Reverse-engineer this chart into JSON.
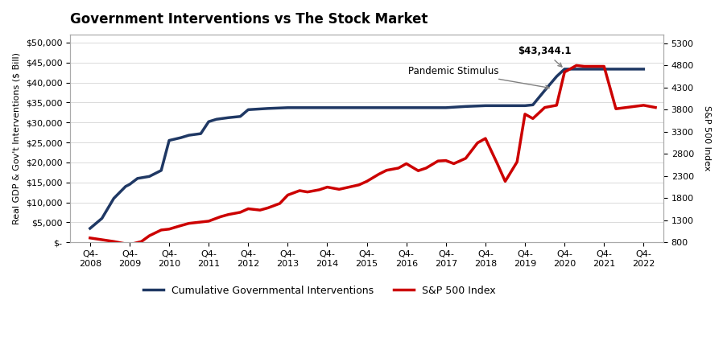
{
  "title": "Government Interventions vs The Stock Market",
  "ylabel_left": "Real GDP & Gov't Interventions ($ Bill)",
  "ylabel_right": "S&P 500 Index",
  "x_labels": [
    "Q4-\n2008",
    "Q4-\n2009",
    "Q4-\n2010",
    "Q4-\n2011",
    "Q4-\n2012",
    "Q4-\n2013",
    "Q4-\n2014",
    "Q4-\n2015",
    "Q4-\n2016",
    "Q4-\n2017",
    "Q4-\n2018",
    "Q4-\n2019",
    "Q4-\n2020",
    "Q4-\n2021",
    "Q4-\n2022"
  ],
  "ylim_left": [
    0,
    52000
  ],
  "ylim_right": [
    800,
    5500
  ],
  "yticks_left": [
    0,
    5000,
    10000,
    15000,
    20000,
    25000,
    30000,
    35000,
    40000,
    45000,
    50000
  ],
  "yticks_right": [
    800,
    1300,
    1800,
    2300,
    2800,
    3300,
    3800,
    4300,
    4800,
    5300
  ],
  "annotation_peak": "$43,344.1",
  "annotation_stimulus": "Pandemic Stimulus",
  "line1_color": "#1f3864",
  "line2_color": "#cc0000",
  "legend1": "Cumulative Governmental Interventions",
  "legend2": "S&P 500 Index",
  "background_color": "#ffffff",
  "gov_x": [
    0,
    0.3,
    0.6,
    0.9,
    1.0,
    1.2,
    1.5,
    1.8,
    2.0,
    2.3,
    2.5,
    2.8,
    3.0,
    3.2,
    3.5,
    3.8,
    4.0,
    4.5,
    5.0,
    5.5,
    6.0,
    6.5,
    7.0,
    7.5,
    8.0,
    8.5,
    9.0,
    9.5,
    10.0,
    10.5,
    11.0,
    11.2,
    11.5,
    11.8,
    12.0,
    12.3,
    13.0,
    13.5,
    14.0
  ],
  "gov_y": [
    3500,
    6000,
    11000,
    14000,
    14500,
    16000,
    16500,
    18000,
    25500,
    26200,
    26800,
    27200,
    30200,
    30800,
    31200,
    31500,
    33200,
    33500,
    33700,
    33700,
    33700,
    33700,
    33700,
    33700,
    33700,
    33700,
    33700,
    34000,
    34200,
    34200,
    34200,
    34400,
    38000,
    41500,
    43344,
    43344,
    43344,
    43344,
    43344
  ],
  "sp_x": [
    0,
    0.3,
    0.6,
    1.0,
    1.3,
    1.5,
    1.8,
    2.0,
    2.3,
    2.5,
    2.8,
    3.0,
    3.3,
    3.5,
    3.8,
    4.0,
    4.3,
    4.5,
    4.8,
    5.0,
    5.3,
    5.5,
    5.8,
    6.0,
    6.3,
    6.5,
    6.8,
    7.0,
    7.3,
    7.5,
    7.8,
    8.0,
    8.3,
    8.5,
    8.8,
    9.0,
    9.2,
    9.5,
    9.8,
    10.0,
    10.3,
    10.5,
    10.8,
    11.0,
    11.2,
    11.5,
    11.8,
    12.0,
    12.3,
    12.5,
    13.0,
    13.3,
    14.0,
    14.3
  ],
  "sp_y": [
    900,
    860,
    820,
    750,
    820,
    950,
    1080,
    1100,
    1180,
    1230,
    1260,
    1280,
    1380,
    1430,
    1480,
    1560,
    1530,
    1580,
    1680,
    1870,
    1970,
    1940,
    1990,
    2050,
    2000,
    2040,
    2100,
    2180,
    2340,
    2430,
    2480,
    2580,
    2420,
    2480,
    2640,
    2650,
    2580,
    2700,
    3050,
    3150,
    2580,
    2180,
    2620,
    3700,
    3600,
    3850,
    3900,
    4650,
    4800,
    4780,
    4780,
    3820,
    3900,
    3850
  ]
}
